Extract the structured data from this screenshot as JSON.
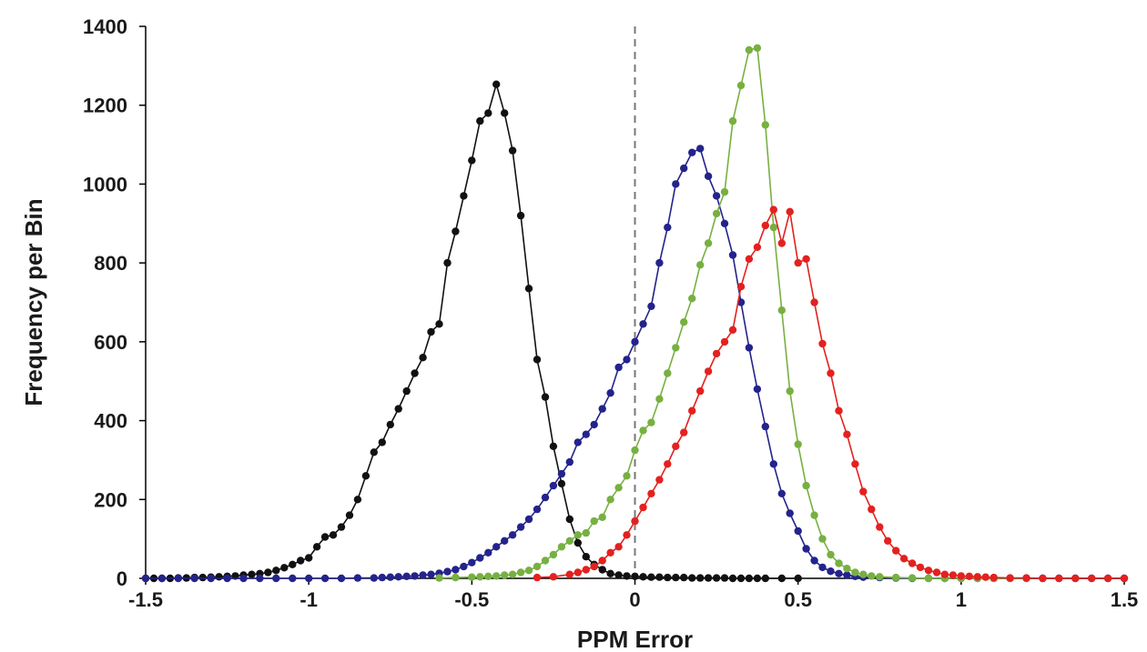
{
  "chart_data": {
    "type": "scatter",
    "title": "",
    "xlabel": "PPM Error",
    "ylabel": "Frequency per Bin",
    "xlim": [
      -1.5,
      1.5
    ],
    "ylim": [
      0,
      1400
    ],
    "x_ticks": [
      "-1.5",
      "-1",
      "-0.5",
      "0",
      "0.5",
      "1",
      "1.5"
    ],
    "y_ticks": [
      "0",
      "200",
      "400",
      "600",
      "800",
      "1000",
      "1200",
      "1400"
    ],
    "reference_line": {
      "x": 0,
      "style": "dashed",
      "color": "#777777"
    },
    "grid": false,
    "legend": "none",
    "series": [
      {
        "color": "#111111",
        "points": [
          [
            -1.5,
            0
          ],
          [
            -1.475,
            0
          ],
          [
            -1.45,
            0
          ],
          [
            -1.425,
            0
          ],
          [
            -1.4,
            1
          ],
          [
            -1.375,
            1
          ],
          [
            -1.35,
            2
          ],
          [
            -1.325,
            2
          ],
          [
            -1.3,
            3
          ],
          [
            -1.275,
            4
          ],
          [
            -1.25,
            5
          ],
          [
            -1.225,
            6
          ],
          [
            -1.2,
            8
          ],
          [
            -1.175,
            10
          ],
          [
            -1.15,
            12
          ],
          [
            -1.125,
            15
          ],
          [
            -1.1,
            20
          ],
          [
            -1.075,
            27
          ],
          [
            -1.05,
            35
          ],
          [
            -1.025,
            45
          ],
          [
            -1.0,
            52
          ],
          [
            -0.975,
            80
          ],
          [
            -0.95,
            105
          ],
          [
            -0.925,
            110
          ],
          [
            -0.9,
            130
          ],
          [
            -0.875,
            160
          ],
          [
            -0.85,
            200
          ],
          [
            -0.825,
            260
          ],
          [
            -0.8,
            320
          ],
          [
            -0.775,
            345
          ],
          [
            -0.75,
            390
          ],
          [
            -0.725,
            430
          ],
          [
            -0.7,
            475
          ],
          [
            -0.675,
            520
          ],
          [
            -0.65,
            560
          ],
          [
            -0.625,
            625
          ],
          [
            -0.6,
            645
          ],
          [
            -0.575,
            800
          ],
          [
            -0.55,
            880
          ],
          [
            -0.525,
            970
          ],
          [
            -0.5,
            1060
          ],
          [
            -0.475,
            1160
          ],
          [
            -0.45,
            1180
          ],
          [
            -0.425,
            1253
          ],
          [
            -0.4,
            1180
          ],
          [
            -0.375,
            1085
          ],
          [
            -0.35,
            920
          ],
          [
            -0.325,
            735
          ],
          [
            -0.3,
            555
          ],
          [
            -0.275,
            460
          ],
          [
            -0.25,
            335
          ],
          [
            -0.225,
            240
          ],
          [
            -0.2,
            150
          ],
          [
            -0.175,
            90
          ],
          [
            -0.15,
            55
          ],
          [
            -0.125,
            35
          ],
          [
            -0.1,
            22
          ],
          [
            -0.075,
            12
          ],
          [
            -0.05,
            8
          ],
          [
            -0.025,
            6
          ],
          [
            0.0,
            5
          ],
          [
            0.025,
            4
          ],
          [
            0.05,
            3
          ],
          [
            0.075,
            3
          ],
          [
            0.1,
            2
          ],
          [
            0.125,
            2
          ],
          [
            0.15,
            2
          ],
          [
            0.175,
            1
          ],
          [
            0.2,
            1
          ],
          [
            0.225,
            1
          ],
          [
            0.25,
            1
          ],
          [
            0.275,
            1
          ],
          [
            0.3,
            0
          ],
          [
            0.325,
            0
          ],
          [
            0.35,
            0
          ],
          [
            0.375,
            0
          ],
          [
            0.4,
            0
          ],
          [
            0.45,
            0
          ],
          [
            0.5,
            0
          ]
        ]
      },
      {
        "color": "#23238c",
        "points": [
          [
            -1.5,
            0
          ],
          [
            -1.45,
            0
          ],
          [
            -1.4,
            0
          ],
          [
            -1.35,
            0
          ],
          [
            -1.3,
            0
          ],
          [
            -1.25,
            0
          ],
          [
            -1.2,
            0
          ],
          [
            -1.15,
            0
          ],
          [
            -1.1,
            0
          ],
          [
            -1.05,
            0
          ],
          [
            -1.0,
            0
          ],
          [
            -0.95,
            0
          ],
          [
            -0.9,
            0
          ],
          [
            -0.85,
            1
          ],
          [
            -0.8,
            1
          ],
          [
            -0.775,
            2
          ],
          [
            -0.75,
            3
          ],
          [
            -0.725,
            4
          ],
          [
            -0.7,
            5
          ],
          [
            -0.675,
            6
          ],
          [
            -0.65,
            8
          ],
          [
            -0.625,
            10
          ],
          [
            -0.6,
            13
          ],
          [
            -0.575,
            17
          ],
          [
            -0.55,
            22
          ],
          [
            -0.525,
            30
          ],
          [
            -0.5,
            40
          ],
          [
            -0.475,
            52
          ],
          [
            -0.45,
            65
          ],
          [
            -0.425,
            80
          ],
          [
            -0.4,
            95
          ],
          [
            -0.375,
            110
          ],
          [
            -0.35,
            130
          ],
          [
            -0.325,
            150
          ],
          [
            -0.3,
            175
          ],
          [
            -0.275,
            205
          ],
          [
            -0.25,
            235
          ],
          [
            -0.225,
            265
          ],
          [
            -0.2,
            295
          ],
          [
            -0.175,
            345
          ],
          [
            -0.15,
            365
          ],
          [
            -0.125,
            390
          ],
          [
            -0.1,
            430
          ],
          [
            -0.075,
            470
          ],
          [
            -0.05,
            535
          ],
          [
            -0.025,
            555
          ],
          [
            0.0,
            600
          ],
          [
            0.025,
            645
          ],
          [
            0.05,
            690
          ],
          [
            0.075,
            800
          ],
          [
            0.1,
            890
          ],
          [
            0.125,
            1000
          ],
          [
            0.15,
            1040
          ],
          [
            0.175,
            1080
          ],
          [
            0.2,
            1090
          ],
          [
            0.225,
            1020
          ],
          [
            0.25,
            970
          ],
          [
            0.275,
            900
          ],
          [
            0.3,
            820
          ],
          [
            0.325,
            700
          ],
          [
            0.35,
            585
          ],
          [
            0.375,
            480
          ],
          [
            0.4,
            385
          ],
          [
            0.425,
            290
          ],
          [
            0.45,
            215
          ],
          [
            0.475,
            165
          ],
          [
            0.5,
            120
          ],
          [
            0.525,
            75
          ],
          [
            0.55,
            45
          ],
          [
            0.575,
            28
          ],
          [
            0.6,
            18
          ],
          [
            0.625,
            12
          ],
          [
            0.65,
            8
          ],
          [
            0.675,
            5
          ],
          [
            0.7,
            3
          ],
          [
            0.75,
            2
          ],
          [
            0.8,
            1
          ],
          [
            0.85,
            0
          ],
          [
            0.9,
            0
          ],
          [
            0.95,
            0
          ],
          [
            1.0,
            0
          ],
          [
            1.05,
            0
          ],
          [
            1.1,
            0
          ],
          [
            1.15,
            0
          ],
          [
            1.2,
            0
          ],
          [
            1.25,
            0
          ],
          [
            1.3,
            0
          ],
          [
            1.35,
            0
          ],
          [
            1.4,
            0
          ],
          [
            1.45,
            0
          ],
          [
            1.5,
            0
          ]
        ]
      },
      {
        "color": "#77b041",
        "points": [
          [
            -0.6,
            1
          ],
          [
            -0.55,
            2
          ],
          [
            -0.5,
            3
          ],
          [
            -0.475,
            4
          ],
          [
            -0.45,
            5
          ],
          [
            -0.425,
            6
          ],
          [
            -0.4,
            8
          ],
          [
            -0.375,
            10
          ],
          [
            -0.35,
            15
          ],
          [
            -0.325,
            20
          ],
          [
            -0.3,
            30
          ],
          [
            -0.275,
            45
          ],
          [
            -0.25,
            60
          ],
          [
            -0.225,
            80
          ],
          [
            -0.2,
            95
          ],
          [
            -0.175,
            110
          ],
          [
            -0.15,
            115
          ],
          [
            -0.125,
            145
          ],
          [
            -0.1,
            155
          ],
          [
            -0.075,
            200
          ],
          [
            -0.05,
            230
          ],
          [
            -0.025,
            260
          ],
          [
            0.0,
            325
          ],
          [
            0.025,
            375
          ],
          [
            0.05,
            395
          ],
          [
            0.075,
            455
          ],
          [
            0.1,
            520
          ],
          [
            0.125,
            585
          ],
          [
            0.15,
            650
          ],
          [
            0.175,
            710
          ],
          [
            0.2,
            795
          ],
          [
            0.225,
            850
          ],
          [
            0.25,
            925
          ],
          [
            0.275,
            980
          ],
          [
            0.3,
            1160
          ],
          [
            0.325,
            1250
          ],
          [
            0.35,
            1340
          ],
          [
            0.375,
            1345
          ],
          [
            0.4,
            1150
          ],
          [
            0.425,
            890
          ],
          [
            0.45,
            680
          ],
          [
            0.475,
            475
          ],
          [
            0.5,
            340
          ],
          [
            0.525,
            235
          ],
          [
            0.55,
            160
          ],
          [
            0.575,
            100
          ],
          [
            0.6,
            60
          ],
          [
            0.625,
            38
          ],
          [
            0.65,
            25
          ],
          [
            0.675,
            15
          ],
          [
            0.7,
            10
          ],
          [
            0.725,
            6
          ],
          [
            0.75,
            4
          ],
          [
            0.8,
            2
          ],
          [
            0.85,
            1
          ],
          [
            0.9,
            0
          ],
          [
            0.95,
            0
          ],
          [
            1.0,
            0
          ],
          [
            1.05,
            0
          ],
          [
            1.1,
            0
          ],
          [
            1.15,
            0
          ],
          [
            1.2,
            0
          ]
        ]
      },
      {
        "color": "#e3211f",
        "points": [
          [
            -0.3,
            2
          ],
          [
            -0.25,
            4
          ],
          [
            -0.2,
            10
          ],
          [
            -0.175,
            15
          ],
          [
            -0.15,
            22
          ],
          [
            -0.125,
            30
          ],
          [
            -0.1,
            45
          ],
          [
            -0.075,
            65
          ],
          [
            -0.05,
            80
          ],
          [
            -0.025,
            110
          ],
          [
            0.0,
            145
          ],
          [
            0.025,
            180
          ],
          [
            0.05,
            215
          ],
          [
            0.075,
            250
          ],
          [
            0.1,
            290
          ],
          [
            0.125,
            335
          ],
          [
            0.15,
            370
          ],
          [
            0.175,
            425
          ],
          [
            0.2,
            475
          ],
          [
            0.225,
            525
          ],
          [
            0.25,
            570
          ],
          [
            0.275,
            600
          ],
          [
            0.3,
            630
          ],
          [
            0.325,
            740
          ],
          [
            0.35,
            810
          ],
          [
            0.375,
            840
          ],
          [
            0.4,
            895
          ],
          [
            0.425,
            935
          ],
          [
            0.45,
            850
          ],
          [
            0.475,
            930
          ],
          [
            0.5,
            800
          ],
          [
            0.525,
            810
          ],
          [
            0.55,
            700
          ],
          [
            0.575,
            595
          ],
          [
            0.6,
            520
          ],
          [
            0.625,
            425
          ],
          [
            0.65,
            365
          ],
          [
            0.675,
            290
          ],
          [
            0.7,
            220
          ],
          [
            0.725,
            175
          ],
          [
            0.75,
            130
          ],
          [
            0.775,
            95
          ],
          [
            0.8,
            70
          ],
          [
            0.825,
            50
          ],
          [
            0.85,
            38
          ],
          [
            0.875,
            28
          ],
          [
            0.9,
            20
          ],
          [
            0.925,
            15
          ],
          [
            0.95,
            10
          ],
          [
            0.975,
            8
          ],
          [
            1.0,
            6
          ],
          [
            1.025,
            5
          ],
          [
            1.05,
            4
          ],
          [
            1.075,
            3
          ],
          [
            1.1,
            2
          ],
          [
            1.15,
            1
          ],
          [
            1.2,
            1
          ],
          [
            1.25,
            0
          ],
          [
            1.3,
            0
          ],
          [
            1.35,
            0
          ],
          [
            1.4,
            0
          ],
          [
            1.45,
            0
          ],
          [
            1.5,
            0
          ]
        ]
      }
    ]
  }
}
